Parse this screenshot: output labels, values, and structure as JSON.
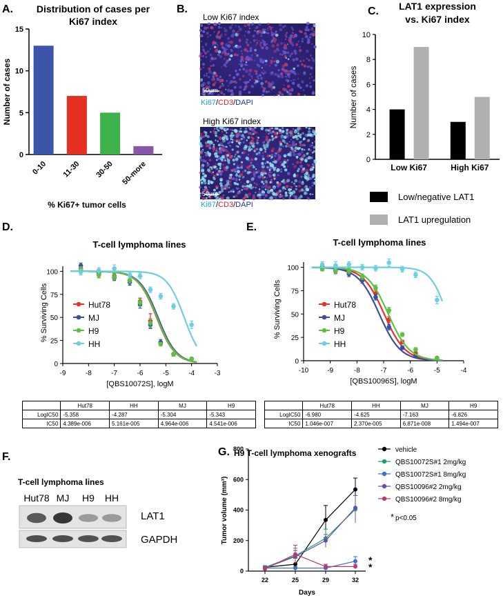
{
  "panel_letters": {
    "a": "A.",
    "b": "B.",
    "c": "C.",
    "d": "D.",
    "e": "E.",
    "f": "F.",
    "g": "G."
  },
  "colors": {
    "blue": "#3b55a8",
    "red": "#e63022",
    "green": "#3db24a",
    "purple": "#8c56a8",
    "black": "#000000",
    "gray": "#b0b0b0",
    "hut78": "#e6332a",
    "mj": "#3a4fa0",
    "h9": "#5fbf45",
    "hh": "#6ccfe0",
    "vehicle": "#000000",
    "q72_2": "#1e9e6e",
    "q72_8": "#3f6fc9",
    "q96_2": "#6a4fa8",
    "q96_8": "#b83a6e"
  },
  "micrographs": {
    "low_label": "Low Ki67 index",
    "high_label": "High Ki67 index",
    "scale": "50µm",
    "stain_ki67": "Ki67",
    "stain_sep1": "/",
    "stain_cd3": "CD3",
    "stain_sep2": "/",
    "stain_dapi": "DAPI"
  },
  "wb": {
    "title": "T-cell lymphoma lines",
    "lanes": [
      "Hut78",
      "MJ",
      "H9",
      "HH"
    ],
    "bands": [
      "LAT1",
      "GAPDH"
    ],
    "lat1_intensity": [
      0.75,
      1.0,
      0.25,
      0.25
    ],
    "gapdh_intensity": [
      0.8,
      0.8,
      0.75,
      0.75
    ]
  },
  "table_d": {
    "headers": [
      "",
      "Hut78",
      "HH",
      "MJ",
      "H9"
    ],
    "rows": [
      [
        "LogIC50",
        "-5.358",
        "-4.287",
        "-5.304",
        "-5.343"
      ],
      [
        "IC50",
        "4.389e-006",
        "5.161e-005",
        "4.964e-006",
        "4.541e-006"
      ]
    ]
  },
  "table_e": {
    "headers": [
      "",
      "Hut78",
      "HH",
      "MJ",
      "H9"
    ],
    "rows": [
      [
        "LogIC50",
        "-6.980",
        "-4.625",
        "-7.163",
        "-6.826"
      ],
      [
        "IC50",
        "1.046e-007",
        "2.370e-005",
        "6.871e-008",
        "1.494e-007"
      ]
    ]
  },
  "chart_data": [
    {
      "id": "A",
      "type": "bar",
      "title": "Distribution of cases per Ki67 index",
      "title_lines": [
        "Distribution of cases per",
        "Ki67 index"
      ],
      "categories": [
        "0-10",
        "11-30",
        "30-50",
        "50-more"
      ],
      "values": [
        13,
        7,
        5,
        1
      ],
      "bar_colors": [
        "#3b55a8",
        "#e63022",
        "#3db24a",
        "#8c56a8"
      ],
      "xlabel": "% Ki67+ tumor cells",
      "ylabel": "Number of cases",
      "ylim": [
        0,
        15
      ],
      "yticks": [
        0,
        5,
        10,
        15
      ],
      "ytick_labels": [
        "0",
        "5",
        "10",
        "15"
      ]
    },
    {
      "id": "C",
      "type": "bar",
      "title": "LAT1 expression vs. Ki67 index",
      "title_lines": [
        "LAT1 expression",
        "vs. Ki67 index"
      ],
      "categories": [
        "Low Ki67",
        "High Ki67"
      ],
      "series": [
        {
          "name": "Low/negative LAT1",
          "values": [
            4,
            3
          ],
          "color": "#000000"
        },
        {
          "name": "LAT1 upregulation",
          "values": [
            9,
            5
          ],
          "color": "#b0b0b0"
        }
      ],
      "ylabel": "Number of cases",
      "ylim": [
        0,
        10
      ],
      "yticks": [
        0,
        2,
        4,
        6,
        8,
        10
      ],
      "ytick_labels": [
        "0",
        "2",
        "4",
        "6",
        "8",
        "10"
      ],
      "legend_position": "bottom"
    },
    {
      "id": "D",
      "type": "scatter",
      "title": "T-cell lymphoma lines",
      "xlabel": "[QBS10072S], logM",
      "ylabel": "% Surviving Cells",
      "xlim": [
        -9,
        -3
      ],
      "ylim": [
        0,
        110
      ],
      "xticks": [
        -9,
        -8,
        -7,
        -6,
        -5,
        -4,
        -3
      ],
      "xtick_labels": [
        "-9",
        "-8",
        "-7",
        "-6",
        "-5",
        "-4",
        "-3"
      ],
      "yticks": [
        0,
        25,
        50,
        75,
        100
      ],
      "ytick_labels": [
        "0",
        "25",
        "50",
        "75",
        "100"
      ],
      "x": [
        -8.3,
        -7.6,
        -7.0,
        -6.4,
        -6.0,
        -5.6,
        -5.2,
        -4.7,
        -4.0
      ],
      "series": [
        {
          "name": "Hut78",
          "color": "#e6332a",
          "logIC50": -5.358,
          "hill": -1.2,
          "y": [
            103,
            96,
            95,
            90,
            67,
            46,
            22,
            10,
            5
          ],
          "err": [
            3,
            3,
            3,
            3,
            4,
            8,
            2,
            2,
            1
          ]
        },
        {
          "name": "MJ",
          "color": "#3a4fa0",
          "logIC50": -5.304,
          "hill": -1.2,
          "y": [
            106,
            98,
            93,
            88,
            64,
            42,
            23,
            10,
            5
          ],
          "err": [
            3,
            3,
            3,
            3,
            4,
            4,
            3,
            2,
            1
          ]
        },
        {
          "name": "H9",
          "color": "#5fbf45",
          "logIC50": -5.343,
          "hill": -1.2,
          "y": [
            102,
            96,
            94,
            90,
            66,
            44,
            21,
            10,
            5
          ],
          "err": [
            3,
            3,
            3,
            3,
            4,
            5,
            2,
            2,
            1
          ]
        },
        {
          "name": "HH",
          "color": "#6ccfe0",
          "logIC50": -4.287,
          "hill": -1.3,
          "y": [
            99,
            101,
            103,
            96,
            95,
            80,
            73,
            62,
            42
          ],
          "err": [
            3,
            3,
            4,
            3,
            3,
            3,
            3,
            3,
            4
          ]
        }
      ]
    },
    {
      "id": "E",
      "type": "scatter",
      "title": "T-cell lymphoma lines",
      "xlabel": "[QBS10096S], logM",
      "ylabel": "% Surviving Cells",
      "xlim": [
        -10,
        -4
      ],
      "ylim": [
        0,
        110
      ],
      "xticks": [
        -10,
        -9,
        -8,
        -7,
        -6,
        -5,
        -4
      ],
      "xtick_labels": [
        "-10",
        "-9",
        "-8",
        "-7",
        "-6",
        "-5",
        "-4"
      ],
      "yticks": [
        0,
        25,
        50,
        75,
        100
      ],
      "ytick_labels": [
        "0",
        "25",
        "50",
        "75",
        "100"
      ],
      "x": [
        -9.3,
        -8.8,
        -8.3,
        -7.8,
        -7.3,
        -6.8,
        -6.3,
        -5.8,
        -5.0
      ],
      "series": [
        {
          "name": "Hut78",
          "color": "#e6332a",
          "logIC50": -6.98,
          "hill": -1.1,
          "y": [
            101,
            97,
            95,
            88,
            72,
            44,
            20,
            8,
            3
          ],
          "err": [
            2,
            3,
            3,
            3,
            4,
            3,
            2,
            2,
            1
          ]
        },
        {
          "name": "MJ",
          "color": "#3a4fa0",
          "logIC50": -7.163,
          "hill": -1.1,
          "y": [
            100,
            96,
            93,
            86,
            68,
            36,
            14,
            5,
            2
          ],
          "err": [
            2,
            3,
            3,
            3,
            3,
            3,
            2,
            1,
            1
          ]
        },
        {
          "name": "H9",
          "color": "#5fbf45",
          "logIC50": -6.826,
          "hill": -1.1,
          "y": [
            98,
            96,
            96,
            90,
            78,
            54,
            28,
            12,
            3
          ],
          "err": [
            2,
            3,
            3,
            3,
            3,
            3,
            2,
            2,
            1
          ]
        },
        {
          "name": "HH",
          "color": "#6ccfe0",
          "logIC50": -4.625,
          "hill": -1.4,
          "y": [
            103,
            102,
            103,
            100,
            99,
            105,
            98,
            92,
            65
          ],
          "err": [
            3,
            4,
            3,
            3,
            3,
            4,
            3,
            3,
            4
          ]
        }
      ]
    },
    {
      "id": "G",
      "type": "line",
      "title": "H9 T-cell lymphoma xenografts",
      "xlabel": "Days",
      "ylabel": "Tumor volume (mm³)",
      "categories": [
        "22",
        "25",
        "29",
        "32"
      ],
      "ylim": [
        0,
        800
      ],
      "yticks": [
        0,
        200,
        400,
        600,
        800
      ],
      "ytick_labels": [
        "0",
        "200",
        "400",
        "600",
        "800"
      ],
      "series": [
        {
          "name": "vehicle",
          "color": "#000000",
          "values": [
            25,
            45,
            335,
            535
          ],
          "err": [
            10,
            40,
            95,
            75
          ]
        },
        {
          "name": "QBS10072S#1 2mg/kg",
          "color": "#1e9e6e",
          "values": [
            25,
            100,
            215,
            405
          ],
          "err": [
            10,
            50,
            60,
            90
          ]
        },
        {
          "name": "QBS10072S#1 8mg/kg",
          "color": "#3f6fc9",
          "values": [
            20,
            20,
            20,
            65
          ],
          "err": [
            8,
            10,
            10,
            30
          ]
        },
        {
          "name": "QBS10096#2 2mg/kg",
          "color": "#6a4fa8",
          "values": [
            20,
            95,
            200,
            415
          ],
          "err": [
            10,
            40,
            40,
            80
          ]
        },
        {
          "name": "QBS10096#2 8mg/kg",
          "color": "#b83a6e",
          "values": [
            15,
            110,
            30,
            30
          ],
          "err": [
            8,
            60,
            15,
            15
          ]
        }
      ],
      "annotations": {
        "star": "*",
        "pvalue": "p<0.05"
      }
    }
  ]
}
